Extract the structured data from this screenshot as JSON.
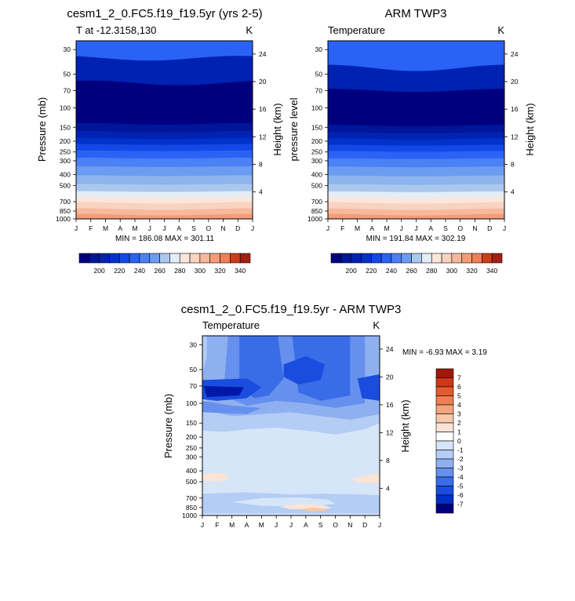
{
  "colors": {
    "temp_palette": [
      "#00007f",
      "#001599",
      "#0022b3",
      "#0033cc",
      "#1448e6",
      "#2a62f5",
      "#4c80f5",
      "#6c9cf2",
      "#8cb4ef",
      "#aac8ee",
      "#c8dcf2",
      "#e3edf8",
      "#fbe6dc",
      "#f9d2c0",
      "#f7b89c",
      "#f49c78",
      "#ef7f54",
      "#e65c30",
      "#cc3d1a",
      "#a32010",
      "#7f0000"
    ],
    "diff_palette": [
      "#00007f",
      "#0018a8",
      "#0030c8",
      "#1a4cdf",
      "#3a6ce8",
      "#6690ee",
      "#8fb0f0",
      "#b4cdf5",
      "#d6e6f8",
      "#fbe4d6",
      "#f8c8a8",
      "#f4a47e",
      "#ef7f54",
      "#e65a30",
      "#cc3818",
      "#a01808",
      "#7f0000"
    ]
  },
  "chart_data": [
    {
      "type": "heatmap",
      "title": "cesm1_2_0.FC5.f19_f19.5yr (yrs 2-5)",
      "left_string": "T at -12.3158,130",
      "right_string": "K",
      "ylabel": "Pressure (mb)",
      "ylabel_right": "Height (km)",
      "x_ticks": [
        "J",
        "F",
        "M",
        "A",
        "M",
        "J",
        "J",
        "A",
        "S",
        "O",
        "N",
        "D",
        "J"
      ],
      "y_ticks": [
        "30",
        "50",
        "70",
        "100",
        "150",
        "200",
        "250",
        "300",
        "400",
        "500",
        "700",
        "850",
        "1000"
      ],
      "y_ticks_right": [
        "24",
        "20",
        "16",
        "12",
        "8",
        "4"
      ],
      "yscale": "log",
      "ylim": [
        1000,
        25
      ],
      "stats": "MIN = 186.08 MAX = 301.11",
      "colorbar_labels": [
        "200",
        "220",
        "240",
        "260",
        "280",
        "300",
        "320",
        "340"
      ],
      "colorbar_levels": [
        190,
        200,
        210,
        220,
        230,
        240,
        250,
        260,
        270,
        280,
        290,
        300,
        310,
        320,
        330,
        340,
        350
      ],
      "min": 186.08,
      "max": 301.11
    },
    {
      "type": "heatmap",
      "title": "ARM TWP3",
      "left_string": "Temperature",
      "right_string": "K",
      "ylabel": "pressure level",
      "ylabel_right": "Height (km)",
      "x_ticks": [
        "J",
        "F",
        "M",
        "A",
        "M",
        "J",
        "J",
        "A",
        "S",
        "O",
        "N",
        "D",
        "J"
      ],
      "y_ticks": [
        "30",
        "50",
        "70",
        "100",
        "150",
        "200",
        "250",
        "300",
        "400",
        "500",
        "700",
        "850",
        "1000"
      ],
      "y_ticks_right": [
        "24",
        "20",
        "16",
        "12",
        "8",
        "4"
      ],
      "yscale": "log",
      "ylim": [
        1000,
        25
      ],
      "stats": "MIN = 191.84 MAX = 302.19",
      "colorbar_labels": [
        "200",
        "220",
        "240",
        "260",
        "280",
        "300",
        "320",
        "340"
      ],
      "colorbar_levels": [
        190,
        200,
        210,
        220,
        230,
        240,
        250,
        260,
        270,
        280,
        290,
        300,
        310,
        320,
        330,
        340,
        350
      ],
      "min": 191.84,
      "max": 302.19
    },
    {
      "type": "heatmap",
      "title": "cesm1_2_0.FC5.f19_f19.5yr - ARM TWP3",
      "left_string": "Temperature",
      "right_string": "K",
      "ylabel": "Pressure (mb)",
      "ylabel_right": "Height (km)",
      "x_ticks": [
        "J",
        "F",
        "M",
        "A",
        "M",
        "J",
        "J",
        "A",
        "S",
        "O",
        "N",
        "D",
        "J"
      ],
      "y_ticks": [
        "30",
        "50",
        "70",
        "100",
        "150",
        "200",
        "250",
        "300",
        "400",
        "500",
        "700",
        "850",
        "1000"
      ],
      "y_ticks_right": [
        "24",
        "20",
        "16",
        "12",
        "8",
        "4"
      ],
      "yscale": "log",
      "ylim": [
        1000,
        25
      ],
      "stats": "MIN =  -6.93 MAX =   3.19",
      "colorbar_labels": [
        "7",
        "6",
        "5",
        "4",
        "3",
        "2",
        "1",
        "0",
        "-1",
        "-2",
        "-3",
        "-4",
        "-5",
        "-6",
        "-7"
      ],
      "min": -6.93,
      "max": 3.19
    }
  ]
}
